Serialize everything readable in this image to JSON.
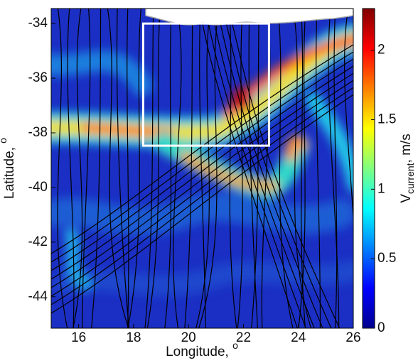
{
  "chart_data": {
    "type": "heatmap",
    "xlabel": "Longitude, ",
    "xlabel_superscript": "o",
    "ylabel": "Latitude, ",
    "ylabel_superscript": "o",
    "xlim": [
      15,
      26
    ],
    "ylim": [
      -45.15,
      -33.45
    ],
    "xticks": [
      16,
      18,
      20,
      22,
      24,
      26
    ],
    "yticks": [
      -44,
      -42,
      -40,
      -38,
      -36,
      -34
    ],
    "colorbar": {
      "label": "V",
      "label_subscript": "current",
      "label_suffix": ", m/s",
      "lim": [
        0,
        2.3
      ],
      "ticks": [
        0,
        0.5,
        1,
        1.5,
        2
      ],
      "colormap": "jet"
    },
    "box": {
      "xlim": [
        18.35,
        22.93
      ],
      "ylim": [
        -38.47,
        -34
      ],
      "color": "#ffffff"
    }
  }
}
